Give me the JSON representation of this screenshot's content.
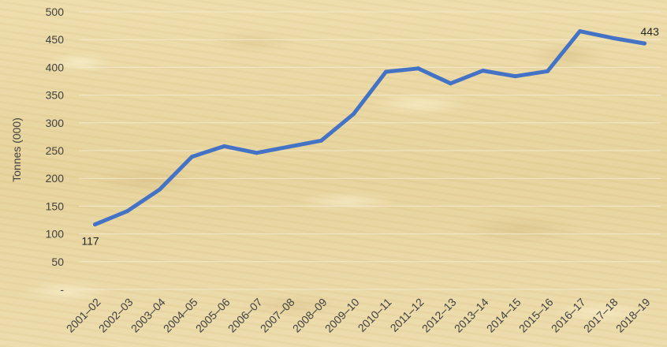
{
  "chart_data": {
    "type": "line",
    "title": "",
    "xlabel": "",
    "ylabel": "Tonnes (000)",
    "ylim": [
      0,
      500
    ],
    "yticks": [
      {
        "value": 0,
        "label": "-"
      },
      {
        "value": 50,
        "label": "50"
      },
      {
        "value": 100,
        "label": "100"
      },
      {
        "value": 150,
        "label": "150"
      },
      {
        "value": 200,
        "label": "200"
      },
      {
        "value": 250,
        "label": "250"
      },
      {
        "value": 300,
        "label": "300"
      },
      {
        "value": 350,
        "label": "350"
      },
      {
        "value": 400,
        "label": "400"
      },
      {
        "value": 450,
        "label": "450"
      },
      {
        "value": 500,
        "label": "500"
      }
    ],
    "grid": true,
    "legend": "none",
    "categories": [
      "2001–02",
      "2002–03",
      "2003–04",
      "2004–05",
      "2005–06",
      "2006–07",
      "2007–08",
      "2008–09",
      "2009–10",
      "2010–11",
      "2011–12",
      "2012–13",
      "2013–14",
      "2014–15",
      "2015–16",
      "2016–17",
      "2017–18",
      "2018–19"
    ],
    "series": [
      {
        "color": "#4472c4",
        "values": [
          117,
          141,
          180,
          239,
          258,
          246,
          257,
          268,
          316,
          392,
          398,
          371,
          394,
          384,
          393,
          465,
          453,
          443
        ]
      }
    ],
    "annotations": [
      {
        "index": 0,
        "label": "117"
      },
      {
        "index": 17,
        "label": "443"
      }
    ]
  }
}
